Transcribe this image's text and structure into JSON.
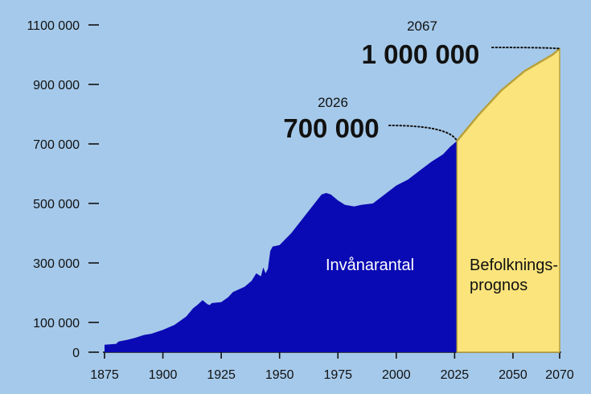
{
  "chart_data": {
    "type": "area",
    "title": "",
    "xlabel": "",
    "ylabel": "",
    "xlim": [
      1875,
      2070
    ],
    "ylim": [
      0,
      1100000
    ],
    "x_ticks": [
      {
        "value": 1875,
        "label": "1875"
      },
      {
        "value": 1900,
        "label": "1900"
      },
      {
        "value": 1925,
        "label": "1925"
      },
      {
        "value": 1950,
        "label": "1950"
      },
      {
        "value": 1975,
        "label": "1975"
      },
      {
        "value": 2000,
        "label": "2000"
      },
      {
        "value": 2025,
        "label": "2025"
      },
      {
        "value": 2050,
        "label": "2050"
      },
      {
        "value": 2070,
        "label": "2070"
      }
    ],
    "y_ticks": [
      {
        "value": 0,
        "label": "0"
      },
      {
        "value": 100000,
        "label": "100 000"
      },
      {
        "value": 300000,
        "label": "300 000"
      },
      {
        "value": 500000,
        "label": "500 000"
      },
      {
        "value": 700000,
        "label": "700 000"
      },
      {
        "value": 900000,
        "label": "900 000"
      },
      {
        "value": 1100000,
        "label": "1100 000"
      }
    ],
    "series": [
      {
        "name": "Invånarantal",
        "color": "#0a0ab4",
        "points": [
          [
            1875,
            25000
          ],
          [
            1880,
            28000
          ],
          [
            1881,
            36000
          ],
          [
            1885,
            42000
          ],
          [
            1888,
            48000
          ],
          [
            1892,
            58000
          ],
          [
            1895,
            62000
          ],
          [
            1900,
            75000
          ],
          [
            1905,
            92000
          ],
          [
            1910,
            120000
          ],
          [
            1913,
            148000
          ],
          [
            1915,
            160000
          ],
          [
            1917,
            175000
          ],
          [
            1919,
            162000
          ],
          [
            1920,
            158000
          ],
          [
            1921,
            165000
          ],
          [
            1925,
            168000
          ],
          [
            1928,
            185000
          ],
          [
            1930,
            202000
          ],
          [
            1935,
            220000
          ],
          [
            1938,
            240000
          ],
          [
            1940,
            265000
          ],
          [
            1942,
            255000
          ],
          [
            1943,
            285000
          ],
          [
            1944,
            265000
          ],
          [
            1945,
            280000
          ],
          [
            1946,
            340000
          ],
          [
            1947,
            355000
          ],
          [
            1950,
            360000
          ],
          [
            1955,
            400000
          ],
          [
            1960,
            450000
          ],
          [
            1965,
            500000
          ],
          [
            1968,
            530000
          ],
          [
            1970,
            535000
          ],
          [
            1972,
            530000
          ],
          [
            1975,
            510000
          ],
          [
            1978,
            495000
          ],
          [
            1982,
            490000
          ],
          [
            1985,
            495000
          ],
          [
            1990,
            500000
          ],
          [
            1995,
            530000
          ],
          [
            2000,
            560000
          ],
          [
            2005,
            580000
          ],
          [
            2010,
            610000
          ],
          [
            2015,
            640000
          ],
          [
            2020,
            665000
          ],
          [
            2023,
            690000
          ],
          [
            2026,
            710000
          ]
        ]
      },
      {
        "name": "Befolkningsprognos",
        "color": "#fbe47b",
        "points": [
          [
            2026,
            710000
          ],
          [
            2035,
            795000
          ],
          [
            2045,
            880000
          ],
          [
            2055,
            945000
          ],
          [
            2067,
            1000000
          ],
          [
            2070,
            1020000
          ]
        ]
      }
    ],
    "annotations": [
      {
        "year_label": "2026",
        "value_label": "700 000",
        "x": 2026,
        "y": 710000
      },
      {
        "year_label": "2067",
        "value_label": "1 000 000",
        "x": 2070,
        "y": 1020000
      }
    ],
    "region_labels": {
      "history": "Invånarantal",
      "forecast_line1": "Befolknings-",
      "forecast_line2": "prognos"
    },
    "grid": false,
    "legend": "none"
  },
  "colors": {
    "background": "#a5c9ea",
    "history_fill": "#0a0ab4",
    "forecast_fill": "#fbe47b",
    "forecast_stroke": "#b8a13a",
    "text": "#111111",
    "history_label_text": "#ffffff"
  }
}
